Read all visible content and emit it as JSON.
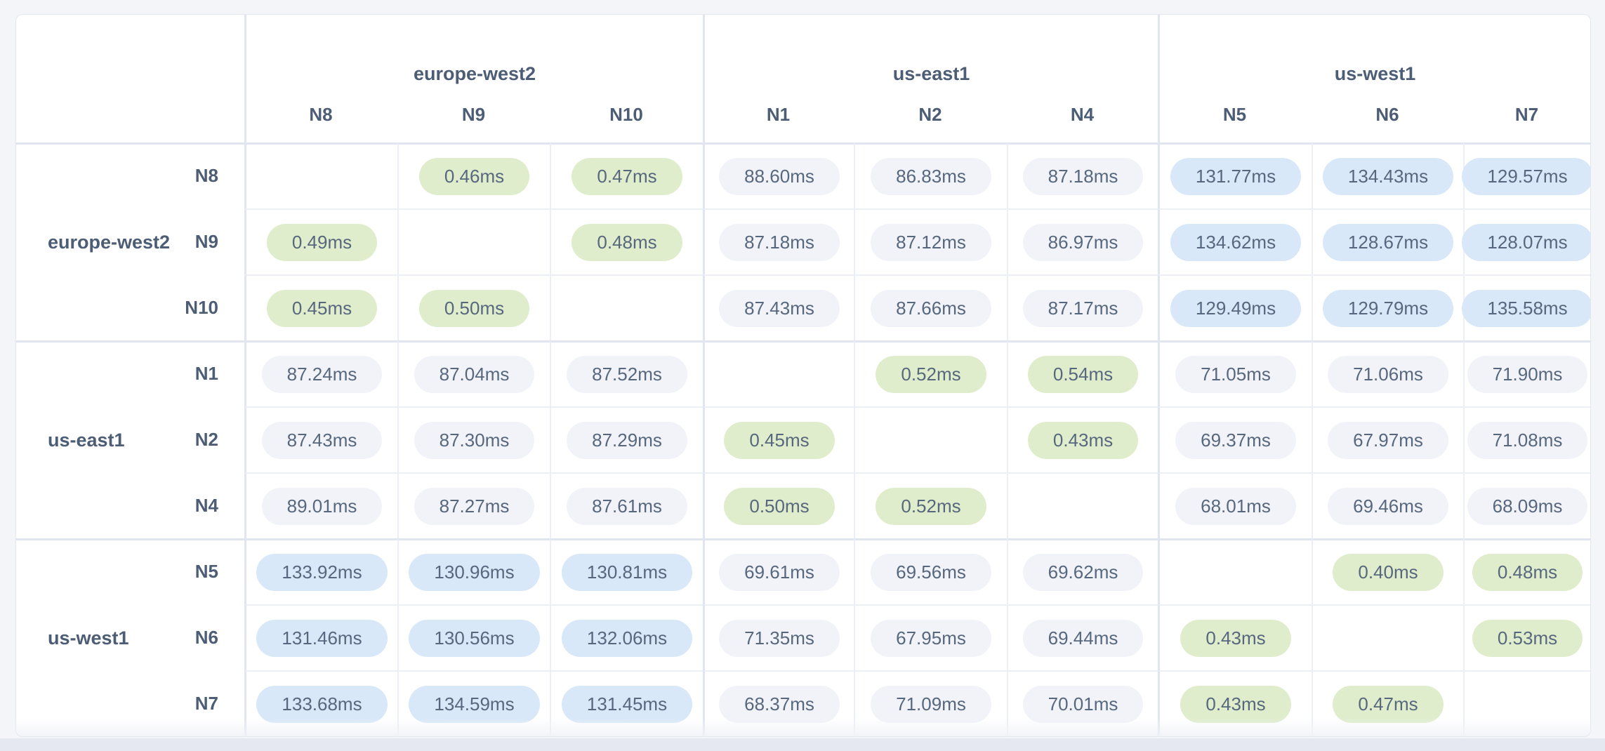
{
  "colors": {
    "page_bg": "#f3f5f9",
    "panel_bg": "#ffffff",
    "panel_border": "#e3e7f0",
    "border_light": "#edeff6",
    "border_strong": "#e0e5f0",
    "pill_text": "#57687e",
    "label_text": "#4c5d75",
    "pill_green_bg": "#e0edcd",
    "pill_blue_bg": "#d8e8f8",
    "pill_gray_bg": "#f1f3f8",
    "scrollbar_track": "#e5e8f0"
  },
  "chart_data": {
    "type": "heatmap",
    "unit": "ms",
    "groups": [
      {
        "region": "europe-west2",
        "nodes": [
          "N8",
          "N9",
          "N10"
        ]
      },
      {
        "region": "us-east1",
        "nodes": [
          "N1",
          "N2",
          "N4"
        ]
      },
      {
        "region": "us-west1",
        "nodes": [
          "N5",
          "N6",
          "N7"
        ]
      }
    ],
    "rows": [
      "N8",
      "N9",
      "N10",
      "N1",
      "N2",
      "N4",
      "N5",
      "N6",
      "N7"
    ],
    "columns": [
      "N8",
      "N9",
      "N10",
      "N1",
      "N2",
      "N4",
      "N5",
      "N6",
      "N7"
    ],
    "values_ms": [
      [
        null,
        0.46,
        0.47,
        88.6,
        86.83,
        87.18,
        131.77,
        134.43,
        129.57
      ],
      [
        0.49,
        null,
        0.48,
        87.18,
        87.12,
        86.97,
        134.62,
        128.67,
        128.07
      ],
      [
        0.45,
        0.5,
        null,
        87.43,
        87.66,
        87.17,
        129.49,
        129.79,
        135.58
      ],
      [
        87.24,
        87.04,
        87.52,
        null,
        0.52,
        0.54,
        71.05,
        71.06,
        71.9
      ],
      [
        87.43,
        87.3,
        87.29,
        0.45,
        null,
        0.43,
        69.37,
        67.97,
        71.08
      ],
      [
        89.01,
        87.27,
        87.61,
        0.5,
        0.52,
        null,
        68.01,
        69.46,
        68.09
      ],
      [
        133.92,
        130.96,
        130.81,
        69.61,
        69.56,
        69.62,
        null,
        0.4,
        0.48
      ],
      [
        131.46,
        130.56,
        132.06,
        71.35,
        67.95,
        69.44,
        0.43,
        null,
        0.53
      ],
      [
        133.68,
        134.59,
        131.45,
        68.37,
        71.09,
        70.01,
        0.43,
        0.47,
        null
      ]
    ],
    "display": [
      [
        "",
        "0.46ms",
        "0.47ms",
        "88.60ms",
        "86.83ms",
        "87.18ms",
        "131.77ms",
        "134.43ms",
        "129.57ms"
      ],
      [
        "0.49ms",
        "",
        "0.48ms",
        "87.18ms",
        "87.12ms",
        "86.97ms",
        "134.62ms",
        "128.67ms",
        "128.07ms"
      ],
      [
        "0.45ms",
        "0.50ms",
        "",
        "87.43ms",
        "87.66ms",
        "87.17ms",
        "129.49ms",
        "129.79ms",
        "135.58ms"
      ],
      [
        "87.24ms",
        "87.04ms",
        "87.52ms",
        "",
        "0.52ms",
        "0.54ms",
        "71.05ms",
        "71.06ms",
        "71.90ms"
      ],
      [
        "87.43ms",
        "87.30ms",
        "87.29ms",
        "0.45ms",
        "",
        "0.43ms",
        "69.37ms",
        "67.97ms",
        "71.08ms"
      ],
      [
        "89.01ms",
        "87.27ms",
        "87.61ms",
        "0.50ms",
        "0.52ms",
        "",
        "68.01ms",
        "69.46ms",
        "68.09ms"
      ],
      [
        "133.92ms",
        "130.96ms",
        "130.81ms",
        "69.61ms",
        "69.56ms",
        "69.62ms",
        "",
        "0.40ms",
        "0.48ms"
      ],
      [
        "131.46ms",
        "130.56ms",
        "132.06ms",
        "71.35ms",
        "67.95ms",
        "69.44ms",
        "0.43ms",
        "",
        "0.53ms"
      ],
      [
        "133.68ms",
        "134.59ms",
        "131.45ms",
        "68.37ms",
        "71.09ms",
        "70.01ms",
        "0.43ms",
        "0.47ms",
        ""
      ]
    ],
    "color_coding": {
      "below_1ms": "#e0edcd",
      "above_100ms": "#d8e8f8",
      "otherwise": "#f1f3f8"
    }
  }
}
